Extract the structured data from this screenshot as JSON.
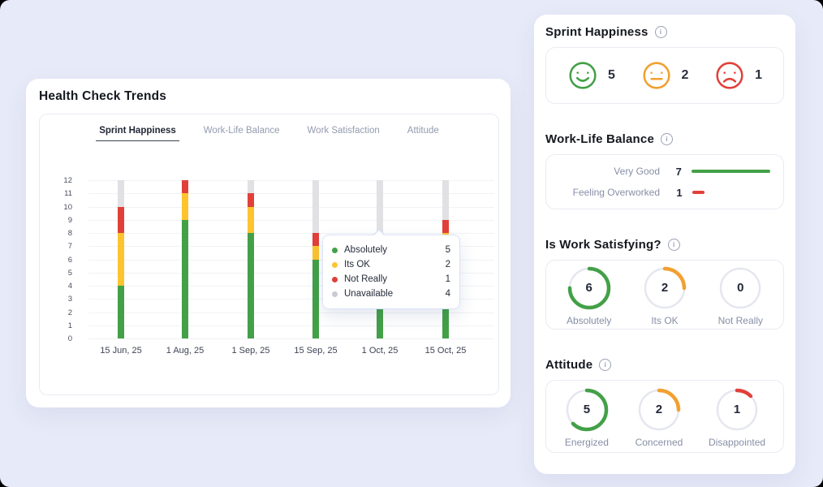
{
  "trends_card": {
    "title": "Health Check Trends",
    "tabs": [
      {
        "label": "Sprint Happiness",
        "active": true
      },
      {
        "label": "Work-Life Balance",
        "active": false
      },
      {
        "label": "Work Satisfaction",
        "active": false
      },
      {
        "label": "Attitude",
        "active": false
      }
    ]
  },
  "chart_data": {
    "type": "bar",
    "stacked": true,
    "title": "Sprint Happiness trend",
    "categories": [
      "15 Jun, 25",
      "1 Aug, 25",
      "1 Sep, 25",
      "15 Sep, 25",
      "1 Oct, 25",
      "15 Oct, 25"
    ],
    "series": [
      {
        "name": "Absolutely",
        "color": "#43A047",
        "values": [
          4,
          9,
          8,
          6,
          5,
          5
        ]
      },
      {
        "name": "Its OK",
        "color": "#FDC42F",
        "values": [
          4,
          2,
          2,
          1,
          2,
          3
        ]
      },
      {
        "name": "Not Really",
        "color": "#E1403A",
        "values": [
          2,
          1,
          1,
          1,
          1,
          1
        ]
      },
      {
        "name": "Unavailable",
        "color": "#E1E1E4",
        "values": [
          2,
          0,
          1,
          4,
          4,
          3
        ]
      }
    ],
    "ylim": [
      0,
      12
    ],
    "ytick_step": 1,
    "grid": true,
    "legend_position": "tooltip-only"
  },
  "chart_tooltip": {
    "category": "1 Oct, 25",
    "rows": [
      {
        "label": "Absolutely",
        "value": "5",
        "color": "#43A047"
      },
      {
        "label": "Its OK",
        "value": "2",
        "color": "#FDC42F"
      },
      {
        "label": "Not Really",
        "value": "1",
        "color": "#E1403A"
      },
      {
        "label": "Unavailable",
        "value": "4",
        "color": "#C9CBD3"
      }
    ]
  },
  "sidebar": {
    "sprint_happiness": {
      "title": "Sprint Happiness",
      "items": [
        {
          "icon": "happy-face-icon",
          "color": "#43A047",
          "count": "5"
        },
        {
          "icon": "neutral-face-icon",
          "color": "#F2A030",
          "count": "2"
        },
        {
          "icon": "sad-face-icon",
          "color": "#E1403A",
          "count": "1"
        }
      ]
    },
    "work_life_balance": {
      "title": "Work-Life Balance",
      "max_value": 7,
      "rows": [
        {
          "label": "Very Good",
          "value": 7,
          "color": "#43A047"
        },
        {
          "label": "Feeling Overworked",
          "value": 1,
          "color": "#E1403A"
        }
      ]
    },
    "work_satisfying": {
      "title": "Is Work Satisfying?",
      "ring_total": 8,
      "items": [
        {
          "label": "Absolutely",
          "value": 6,
          "color": "#43A047"
        },
        {
          "label": "Its OK",
          "value": 2,
          "color": "#F2A030"
        },
        {
          "label": "Not Really",
          "value": 0,
          "color": "#F2A030"
        }
      ]
    },
    "attitude": {
      "title": "Attitude",
      "ring_total": 8,
      "items": [
        {
          "label": "Energized",
          "value": 5,
          "color": "#43A047"
        },
        {
          "label": "Concerned",
          "value": 2,
          "color": "#F2A030"
        },
        {
          "label": "Disappointed",
          "value": 1,
          "color": "#E1403A"
        }
      ]
    }
  }
}
